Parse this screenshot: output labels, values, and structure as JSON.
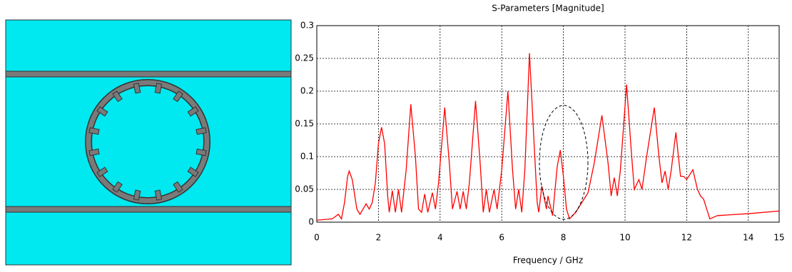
{
  "chart_data": {
    "type": "line",
    "title": "S-Parameters [Magnitude]",
    "x_label": "Frequency / GHz",
    "xlim": [
      0,
      15
    ],
    "ylim": [
      0,
      0.3
    ],
    "xticks": [
      0,
      2,
      4,
      6,
      8,
      10,
      12,
      14,
      15
    ],
    "yticks": [
      0,
      0.05,
      0.1,
      0.15,
      0.2,
      0.25,
      0.3
    ],
    "grid": true,
    "x": [
      0,
      0.5,
      0.7,
      0.8,
      0.9,
      1.0,
      1.05,
      1.15,
      1.3,
      1.4,
      1.5,
      1.6,
      1.7,
      1.8,
      1.9,
      2.0,
      2.1,
      2.2,
      2.3,
      2.35,
      2.45,
      2.55,
      2.65,
      2.75,
      2.9,
      3.05,
      3.2,
      3.3,
      3.4,
      3.5,
      3.6,
      3.75,
      3.85,
      3.95,
      4.15,
      4.3,
      4.4,
      4.55,
      4.65,
      4.75,
      4.85,
      4.95,
      5.15,
      5.3,
      5.4,
      5.5,
      5.6,
      5.75,
      5.85,
      6.0,
      6.2,
      6.35,
      6.45,
      6.55,
      6.65,
      6.75,
      6.9,
      7.05,
      7.15,
      7.2,
      7.3,
      7.45,
      7.5,
      7.65,
      7.8,
      7.9,
      8.0,
      8.1,
      8.2,
      8.4,
      8.6,
      8.8,
      9.0,
      9.25,
      9.45,
      9.55,
      9.65,
      9.75,
      9.85,
      10.05,
      10.2,
      10.3,
      10.45,
      10.55,
      10.7,
      10.95,
      11.1,
      11.2,
      11.3,
      11.4,
      11.5,
      11.65,
      11.8,
      11.9,
      12.0,
      12.2,
      12.35,
      12.45,
      12.55,
      12.75,
      13.0,
      14.0,
      15.0
    ],
    "series": [
      {
        "color": "#ff0000",
        "values": [
          0.003,
          0.005,
          0.012,
          0.005,
          0.03,
          0.07,
          0.078,
          0.065,
          0.02,
          0.012,
          0.02,
          0.028,
          0.02,
          0.03,
          0.06,
          0.12,
          0.145,
          0.12,
          0.04,
          0.015,
          0.048,
          0.015,
          0.05,
          0.015,
          0.08,
          0.18,
          0.1,
          0.02,
          0.015,
          0.043,
          0.015,
          0.045,
          0.02,
          0.06,
          0.175,
          0.09,
          0.02,
          0.047,
          0.02,
          0.047,
          0.02,
          0.06,
          0.185,
          0.09,
          0.015,
          0.05,
          0.015,
          0.05,
          0.02,
          0.08,
          0.2,
          0.08,
          0.02,
          0.05,
          0.015,
          0.08,
          0.258,
          0.12,
          0.03,
          0.015,
          0.055,
          0.02,
          0.04,
          0.01,
          0.085,
          0.11,
          0.07,
          0.02,
          0.005,
          0.015,
          0.03,
          0.045,
          0.09,
          0.163,
          0.09,
          0.04,
          0.068,
          0.04,
          0.08,
          0.21,
          0.11,
          0.05,
          0.065,
          0.05,
          0.1,
          0.175,
          0.1,
          0.06,
          0.078,
          0.05,
          0.08,
          0.137,
          0.07,
          0.07,
          0.065,
          0.08,
          0.05,
          0.04,
          0.035,
          0.005,
          0.01,
          0.013,
          0.017
        ]
      }
    ]
  }
}
